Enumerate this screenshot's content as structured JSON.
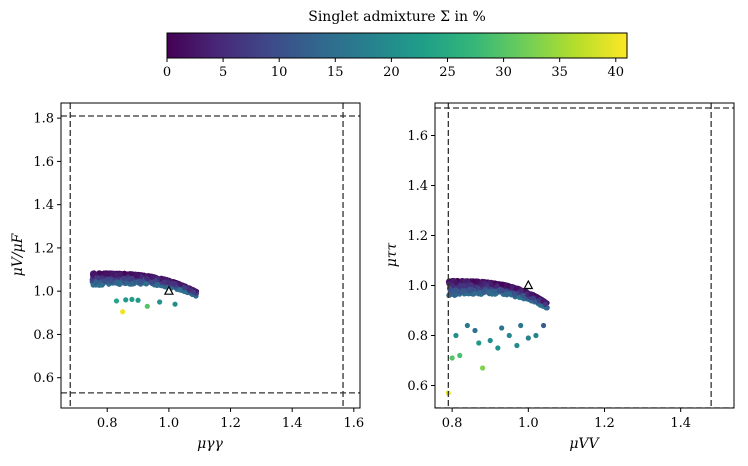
{
  "colorbar": {
    "title": "Singlet admixture Σ in %",
    "min": 0,
    "max": 41,
    "ticks": [
      "0",
      "5",
      "10",
      "15",
      "20",
      "25",
      "30",
      "35",
      "40"
    ],
    "colors": [
      "#440154",
      "#482878",
      "#3e4989",
      "#31688e",
      "#26828e",
      "#1f9e89",
      "#35b779",
      "#6ece58",
      "#b5de2b",
      "#fde725"
    ]
  },
  "chart_data": [
    {
      "type": "scatter",
      "title": "",
      "xlabel": "μγγ",
      "ylabel": "μV/μF",
      "xlim": [
        0.65,
        1.62
      ],
      "ylim": [
        0.46,
        1.87
      ],
      "xticks": [
        "0.8",
        "1.0",
        "1.2",
        "1.4",
        "1.6"
      ],
      "yticks": [
        "0.6",
        "0.8",
        "1.0",
        "1.2",
        "1.4",
        "1.6",
        "1.8"
      ],
      "bounds": {
        "x": [
          0.68,
          1.565
        ],
        "y": [
          0.53,
          1.81
        ]
      },
      "reference_point": {
        "x": 1.0,
        "y": 1.0
      },
      "cluster_main": {
        "x_range": [
          0.75,
          1.09
        ],
        "y_top": 1.085,
        "y_bottom": 0.97
      },
      "outliers": [
        {
          "x": 0.83,
          "y": 0.955,
          "sigma": 24
        },
        {
          "x": 0.86,
          "y": 0.96,
          "sigma": 22
        },
        {
          "x": 0.88,
          "y": 0.962,
          "sigma": 23
        },
        {
          "x": 0.9,
          "y": 0.958,
          "sigma": 22
        },
        {
          "x": 0.93,
          "y": 0.93,
          "sigma": 30
        },
        {
          "x": 0.85,
          "y": 0.905,
          "sigma": 40
        },
        {
          "x": 0.97,
          "y": 0.95,
          "sigma": 21
        },
        {
          "x": 1.02,
          "y": 0.94,
          "sigma": 20
        }
      ]
    },
    {
      "type": "scatter",
      "title": "",
      "xlabel": "μVV",
      "ylabel": "μττ",
      "xlim": [
        0.755,
        1.54
      ],
      "ylim": [
        0.51,
        1.73
      ],
      "xticks": [
        "0.8",
        "1.0",
        "1.2",
        "1.4"
      ],
      "yticks": [
        "0.6",
        "0.8",
        "1.0",
        "1.2",
        "1.4",
        "1.6"
      ],
      "bounds": {
        "x": [
          0.79,
          1.48
        ],
        "y": [
          0.51,
          1.71
        ]
      },
      "reference_point": {
        "x": 1.0,
        "y": 1.0
      },
      "cluster_main": {
        "x_range": [
          0.79,
          1.05
        ],
        "y_top": 1.02,
        "y_bottom": 0.9
      },
      "outliers": [
        {
          "x": 0.79,
          "y": 0.57,
          "sigma": 40
        },
        {
          "x": 0.8,
          "y": 0.71,
          "sigma": 30
        },
        {
          "x": 0.82,
          "y": 0.72,
          "sigma": 29
        },
        {
          "x": 0.88,
          "y": 0.67,
          "sigma": 33
        },
        {
          "x": 0.81,
          "y": 0.8,
          "sigma": 20
        },
        {
          "x": 0.87,
          "y": 0.77,
          "sigma": 22
        },
        {
          "x": 0.9,
          "y": 0.78,
          "sigma": 20
        },
        {
          "x": 0.92,
          "y": 0.75,
          "sigma": 21
        },
        {
          "x": 0.95,
          "y": 0.8,
          "sigma": 19
        },
        {
          "x": 0.97,
          "y": 0.76,
          "sigma": 20
        },
        {
          "x": 1.0,
          "y": 0.79,
          "sigma": 18
        },
        {
          "x": 1.02,
          "y": 0.8,
          "sigma": 18
        },
        {
          "x": 0.84,
          "y": 0.84,
          "sigma": 17
        },
        {
          "x": 0.93,
          "y": 0.83,
          "sigma": 16
        },
        {
          "x": 0.98,
          "y": 0.84,
          "sigma": 16
        },
        {
          "x": 1.04,
          "y": 0.84,
          "sigma": 12
        },
        {
          "x": 0.86,
          "y": 0.82,
          "sigma": 15
        }
      ]
    }
  ]
}
